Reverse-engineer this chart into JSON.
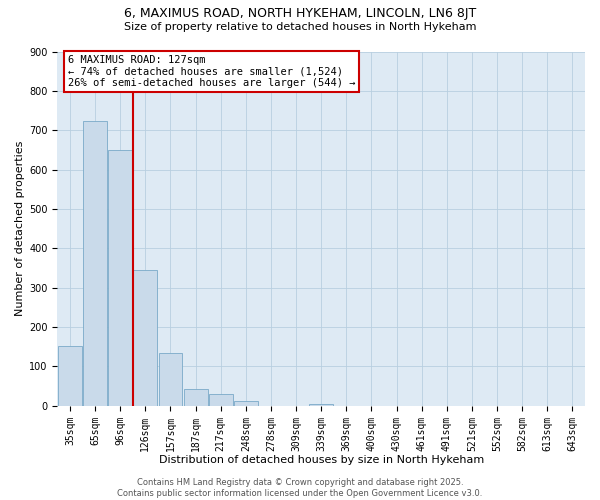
{
  "title": "6, MAXIMUS ROAD, NORTH HYKEHAM, LINCOLN, LN6 8JT",
  "subtitle": "Size of property relative to detached houses in North Hykeham",
  "xlabel": "Distribution of detached houses by size in North Hykeham",
  "ylabel": "Number of detached properties",
  "bar_color": "#c9daea",
  "bar_edge_color": "#7aaac8",
  "background_color": "#ffffff",
  "plot_bg_color": "#deeaf4",
  "grid_color": "#b8cfe0",
  "categories": [
    "35sqm",
    "65sqm",
    "96sqm",
    "126sqm",
    "157sqm",
    "187sqm",
    "217sqm",
    "248sqm",
    "278sqm",
    "309sqm",
    "339sqm",
    "369sqm",
    "400sqm",
    "430sqm",
    "461sqm",
    "491sqm",
    "521sqm",
    "552sqm",
    "582sqm",
    "613sqm",
    "643sqm"
  ],
  "values": [
    152,
    723,
    650,
    345,
    133,
    42,
    30,
    12,
    0,
    0,
    5,
    0,
    0,
    0,
    0,
    0,
    0,
    0,
    0,
    0,
    0
  ],
  "vline_color": "#cc0000",
  "annotation_text": "6 MAXIMUS ROAD: 127sqm\n← 74% of detached houses are smaller (1,524)\n26% of semi-detached houses are larger (544) →",
  "annotation_box_color": "#ffffff",
  "annotation_box_edge": "#cc0000",
  "ylim": [
    0,
    900
  ],
  "yticks": [
    0,
    100,
    200,
    300,
    400,
    500,
    600,
    700,
    800,
    900
  ],
  "footer_text": "Contains HM Land Registry data © Crown copyright and database right 2025.\nContains public sector information licensed under the Open Government Licence v3.0.",
  "title_fontsize": 9,
  "subtitle_fontsize": 8,
  "axis_label_fontsize": 8,
  "tick_fontsize": 7,
  "annotation_fontsize": 7.5,
  "footer_fontsize": 6
}
